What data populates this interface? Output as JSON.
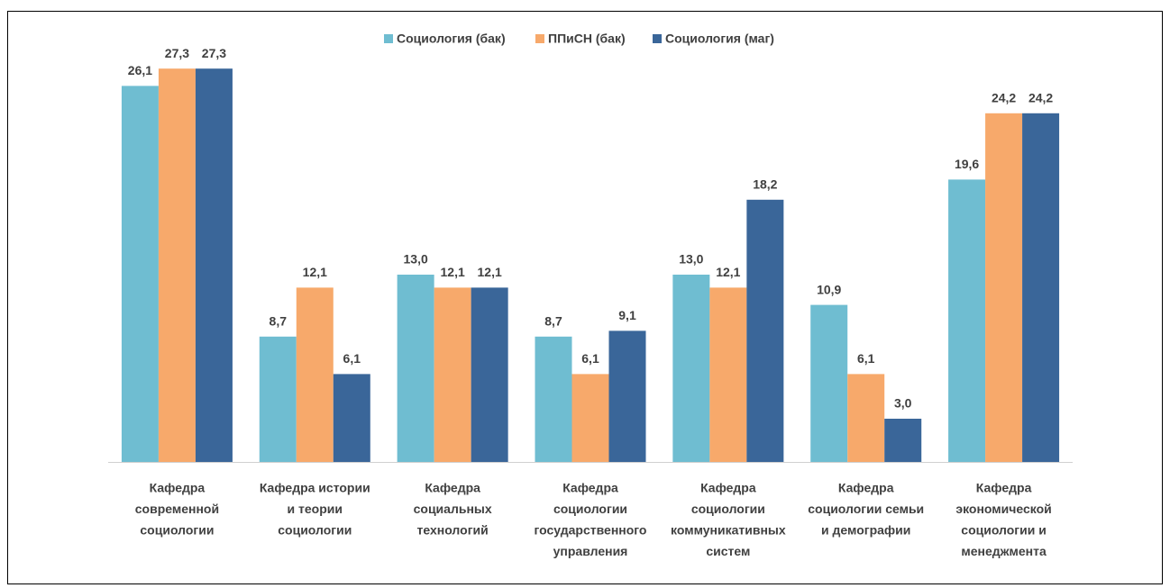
{
  "chart_data": {
    "type": "bar",
    "categories": [
      [
        "Кафедра",
        "современной",
        "социологии"
      ],
      [
        "Кафедра истории",
        "и теории",
        "социологии"
      ],
      [
        "Кафедра",
        "социальных",
        "технологий"
      ],
      [
        "Кафедра",
        "социологии",
        "государственного",
        "управления"
      ],
      [
        "Кафедра",
        "социологии",
        "коммуникативных",
        "систем"
      ],
      [
        "Кафедра",
        "социологии семьи",
        "и демографии"
      ],
      [
        "Кафедра",
        "экономической",
        "социологии и",
        "менеджмента"
      ]
    ],
    "series": [
      {
        "name": "Социология (бак)",
        "color": "#6fbdd1",
        "values": [
          26.1,
          8.7,
          13.0,
          8.7,
          13.0,
          10.9,
          19.6
        ],
        "value_labels": [
          "26,1",
          "8,7",
          "13,0",
          "8,7",
          "13,0",
          "10,9",
          "19,6"
        ]
      },
      {
        "name": "ППиСН (бак)",
        "color": "#f7a96b",
        "values": [
          27.3,
          12.1,
          12.1,
          6.1,
          12.1,
          6.1,
          24.2
        ],
        "value_labels": [
          "27,3",
          "12,1",
          "12,1",
          "6,1",
          "12,1",
          "6,1",
          "24,2"
        ]
      },
      {
        "name": "Социология (маг)",
        "color": "#3a6699",
        "values": [
          27.3,
          6.1,
          12.1,
          9.1,
          18.2,
          3.0,
          24.2
        ],
        "value_labels": [
          "27,3",
          "6,1",
          "12,1",
          "9,1",
          "18,2",
          "3,0",
          "24,2"
        ]
      }
    ],
    "legend": "top"
  }
}
